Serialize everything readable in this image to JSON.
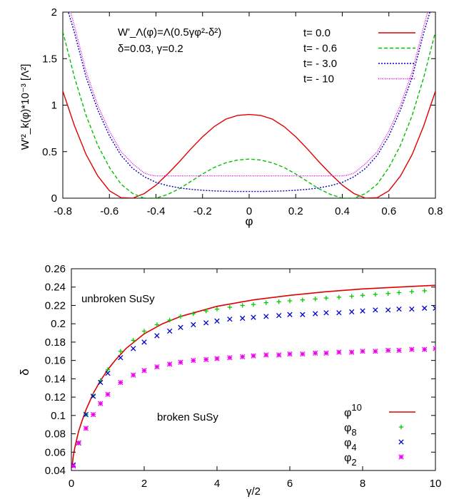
{
  "chart_data": [
    {
      "type": "line",
      "annotation_lines": [
        "W'_Λ(φ)=Λ(0.5γφ²-δ²)",
        "δ=0.03,  γ=0.2"
      ],
      "ylabel": "W'²_k(φ)*10⁻³ [Λ²]",
      "xlabel": "φ",
      "xlim": [
        -0.8,
        0.8
      ],
      "ylim": [
        0,
        2
      ],
      "xticks": [
        -0.8,
        -0.6,
        -0.4,
        -0.2,
        0,
        0.2,
        0.4,
        0.6,
        0.8
      ],
      "xtick_labels": [
        "-0.8",
        "-0.6",
        "-0.4",
        "-0.2",
        "0",
        "0.2",
        "0.4",
        "0.6",
        "0.8"
      ],
      "yticks": [
        0,
        0.5,
        1,
        1.5,
        2
      ],
      "ytick_labels": [
        "0",
        "0.5",
        "1",
        "1.5",
        "2"
      ],
      "grid": false,
      "legend_position": "top-right",
      "series": [
        {
          "name": "t=  0.0",
          "color": "#e00000",
          "dash": "solid",
          "x": [
            -0.8,
            -0.75,
            -0.7,
            -0.65,
            -0.6,
            -0.55,
            -0.5,
            -0.45,
            -0.4,
            -0.35,
            -0.3,
            -0.25,
            -0.2,
            -0.15,
            -0.1,
            -0.05,
            0,
            0.05,
            0.1,
            0.15,
            0.2,
            0.25,
            0.3,
            0.35,
            0.4,
            0.45,
            0.5,
            0.55,
            0.6,
            0.65,
            0.7,
            0.75,
            0.8
          ],
          "y": [
            1.15,
            0.78,
            0.47,
            0.24,
            0.08,
            0.005,
            0.0,
            0.05,
            0.14,
            0.26,
            0.39,
            0.53,
            0.66,
            0.77,
            0.85,
            0.89,
            0.9,
            0.89,
            0.85,
            0.77,
            0.66,
            0.53,
            0.39,
            0.26,
            0.14,
            0.05,
            0.0,
            0.005,
            0.08,
            0.24,
            0.47,
            0.78,
            1.15
          ]
        },
        {
          "name": "t= - 0.6",
          "color": "#00c000",
          "dash": "dashed",
          "x": [
            -0.8,
            -0.75,
            -0.7,
            -0.65,
            -0.6,
            -0.55,
            -0.5,
            -0.45,
            -0.4,
            -0.35,
            -0.3,
            -0.25,
            -0.2,
            -0.15,
            -0.1,
            -0.05,
            0,
            0.05,
            0.1,
            0.15,
            0.2,
            0.25,
            0.3,
            0.35,
            0.4,
            0.45,
            0.5,
            0.55,
            0.6,
            0.65,
            0.7,
            0.75,
            0.8
          ],
          "y": [
            1.79,
            1.3,
            0.89,
            0.57,
            0.33,
            0.15,
            0.05,
            0.0,
            0.0,
            0.04,
            0.1,
            0.18,
            0.26,
            0.33,
            0.38,
            0.41,
            0.42,
            0.41,
            0.38,
            0.33,
            0.26,
            0.18,
            0.1,
            0.04,
            0.0,
            0.0,
            0.05,
            0.15,
            0.33,
            0.57,
            0.89,
            1.3,
            1.79
          ]
        },
        {
          "name": "t= - 3.0",
          "color": "#0000c0",
          "dash": "dotted",
          "x": [
            -0.8,
            -0.75,
            -0.7,
            -0.65,
            -0.6,
            -0.55,
            -0.5,
            -0.45,
            -0.4,
            -0.35,
            -0.3,
            -0.25,
            -0.2,
            -0.15,
            -0.1,
            -0.05,
            0,
            0.05,
            0.1,
            0.15,
            0.2,
            0.25,
            0.3,
            0.35,
            0.4,
            0.45,
            0.5,
            0.55,
            0.6,
            0.65,
            0.7,
            0.75,
            0.8
          ],
          "y": [
            2.2,
            1.78,
            1.3,
            0.95,
            0.67,
            0.46,
            0.32,
            0.23,
            0.17,
            0.135,
            0.11,
            0.095,
            0.085,
            0.078,
            0.074,
            0.072,
            0.072,
            0.072,
            0.074,
            0.078,
            0.085,
            0.095,
            0.11,
            0.135,
            0.17,
            0.23,
            0.32,
            0.46,
            0.67,
            0.95,
            1.3,
            1.78,
            2.2
          ]
        },
        {
          "name": "t=  - 10",
          "color": "#e000e0",
          "dash": "dotted-fine",
          "x": [
            -0.8,
            -0.75,
            -0.7,
            -0.65,
            -0.6,
            -0.55,
            -0.5,
            -0.45,
            -0.42,
            -0.4,
            -0.3,
            -0.2,
            -0.1,
            0,
            0.1,
            0.2,
            0.3,
            0.4,
            0.42,
            0.45,
            0.5,
            0.55,
            0.6,
            0.65,
            0.7,
            0.75,
            0.8
          ],
          "y": [
            2.3,
            1.85,
            1.36,
            1.0,
            0.72,
            0.5,
            0.37,
            0.27,
            0.245,
            0.24,
            0.24,
            0.24,
            0.24,
            0.24,
            0.24,
            0.24,
            0.24,
            0.24,
            0.245,
            0.27,
            0.37,
            0.5,
            0.72,
            1.0,
            1.36,
            1.85,
            2.3
          ]
        }
      ]
    },
    {
      "type": "scatter",
      "xlabel": "γ/2",
      "ylabel": "δ",
      "xlim": [
        0,
        10
      ],
      "ylim": [
        0.04,
        0.26
      ],
      "xticks": [
        0,
        2,
        4,
        6,
        8,
        10
      ],
      "xtick_labels": [
        "0",
        "2",
        "4",
        "6",
        "8",
        "10"
      ],
      "yticks": [
        0.04,
        0.06,
        0.08,
        0.1,
        0.12,
        0.14,
        0.16,
        0.18,
        0.2,
        0.22,
        0.24,
        0.26
      ],
      "ytick_labels": [
        "0.04",
        "0.06",
        "0.08",
        "0.1",
        "0.12",
        "0.14",
        "0.16",
        "0.18",
        "0.2",
        "0.22",
        "0.24",
        "0.26"
      ],
      "grid": false,
      "legend_position": "bottom-right",
      "annotations": [
        "unbroken SuSy",
        "broken SuSy"
      ],
      "series": [
        {
          "name": "φ10",
          "color": "#e00000",
          "style": "line",
          "x": [
            0.02,
            0.05,
            0.1,
            0.2,
            0.3,
            0.4,
            0.5,
            0.6,
            0.8,
            1.0,
            1.2,
            1.5,
            2.0,
            2.5,
            3.0,
            4.0,
            5.0,
            6.0,
            7.0,
            8.0,
            9.0,
            10.0
          ],
          "y": [
            0.043,
            0.055,
            0.066,
            0.083,
            0.095,
            0.106,
            0.115,
            0.124,
            0.138,
            0.15,
            0.16,
            0.173,
            0.189,
            0.2,
            0.208,
            0.219,
            0.226,
            0.231,
            0.235,
            0.238,
            0.24,
            0.242
          ]
        },
        {
          "name": "φ8",
          "color": "#00cc00",
          "style": "plus",
          "x": [
            0.2,
            0.4,
            0.6,
            0.8,
            1.0,
            1.35,
            1.7,
            2.0,
            2.35,
            2.7,
            3.0,
            3.35,
            3.7,
            4.0,
            4.35,
            4.7,
            5.0,
            5.35,
            5.7,
            6.0,
            6.35,
            6.7,
            7.0,
            7.35,
            7.7,
            8.0,
            8.35,
            8.7,
            9.0,
            9.35,
            9.7
          ],
          "y": [
            0.07,
            0.101,
            0.122,
            0.138,
            0.15,
            0.17,
            0.182,
            0.192,
            0.199,
            0.204,
            0.208,
            0.211,
            0.214,
            0.216,
            0.218,
            0.22,
            0.221,
            0.223,
            0.224,
            0.225,
            0.226,
            0.227,
            0.228,
            0.229,
            0.23,
            0.231,
            0.232,
            0.233,
            0.234,
            0.235,
            0.236
          ]
        },
        {
          "name": "φ4",
          "color": "#0000cc",
          "style": "cross",
          "x": [
            0.05,
            0.2,
            0.4,
            0.6,
            0.8,
            1.0,
            1.35,
            1.7,
            2.0,
            2.35,
            2.7,
            3.0,
            3.35,
            3.7,
            4.0,
            4.35,
            4.7,
            5.0,
            5.35,
            5.7,
            6.0,
            6.35,
            6.7,
            7.0,
            7.35,
            7.7,
            8.0,
            8.35,
            8.7,
            9.0,
            9.35,
            9.7,
            10.0
          ],
          "y": [
            0.046,
            0.07,
            0.101,
            0.121,
            0.136,
            0.146,
            0.163,
            0.173,
            0.18,
            0.187,
            0.192,
            0.196,
            0.199,
            0.201,
            0.203,
            0.205,
            0.206,
            0.207,
            0.208,
            0.209,
            0.21,
            0.21,
            0.211,
            0.212,
            0.212,
            0.213,
            0.214,
            0.215,
            0.215,
            0.216,
            0.216,
            0.217,
            0.217
          ]
        },
        {
          "name": "φ2",
          "color": "#ee00ee",
          "style": "star",
          "x": [
            0.05,
            0.2,
            0.4,
            0.6,
            0.8,
            1.0,
            1.35,
            1.7,
            2.0,
            2.35,
            2.7,
            3.0,
            3.35,
            3.7,
            4.0,
            4.35,
            4.7,
            5.0,
            5.35,
            5.7,
            6.0,
            6.35,
            6.7,
            7.0,
            7.35,
            7.7,
            8.0,
            8.35,
            8.7,
            9.0,
            9.35,
            9.7,
            10.0
          ],
          "y": [
            0.045,
            0.07,
            0.086,
            0.101,
            0.113,
            0.123,
            0.136,
            0.144,
            0.149,
            0.153,
            0.156,
            0.158,
            0.16,
            0.161,
            0.162,
            0.163,
            0.164,
            0.165,
            0.166,
            0.166,
            0.167,
            0.167,
            0.168,
            0.168,
            0.169,
            0.169,
            0.17,
            0.17,
            0.171,
            0.171,
            0.172,
            0.172,
            0.173
          ]
        }
      ]
    }
  ]
}
